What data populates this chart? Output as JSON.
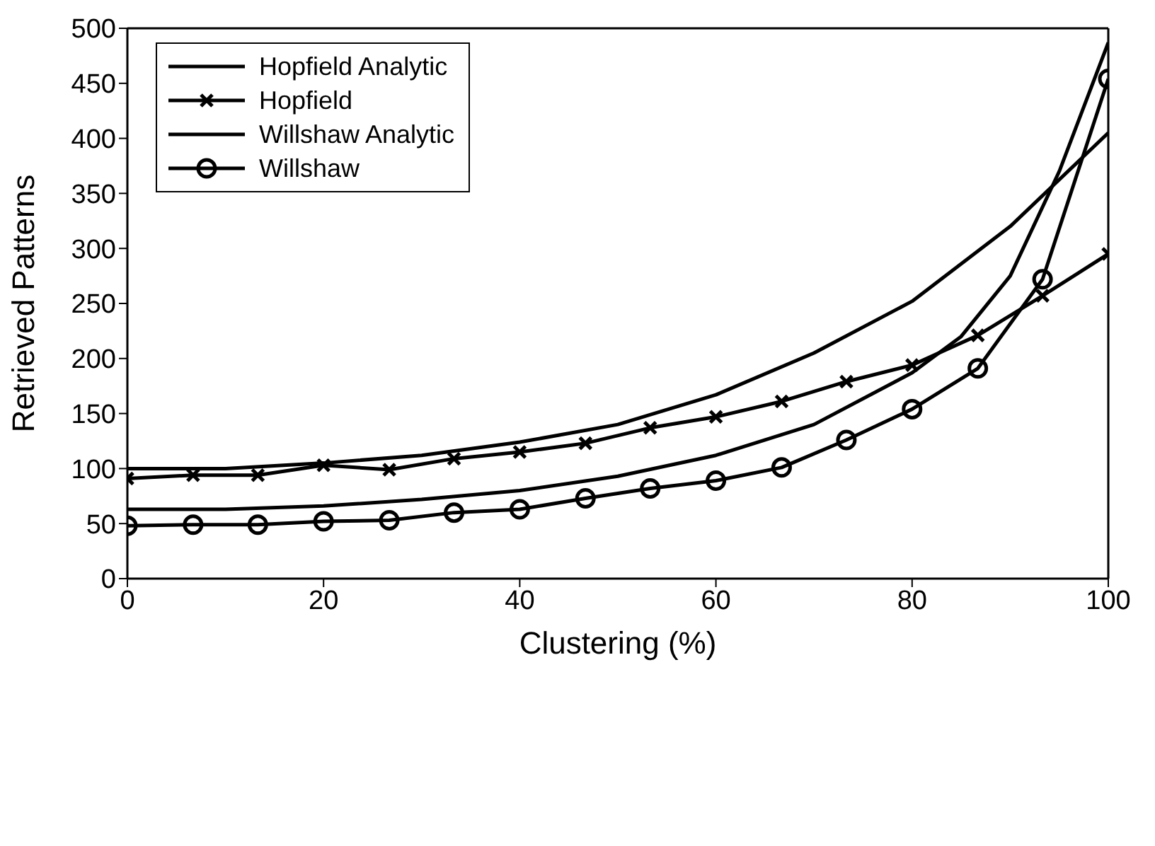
{
  "chart_data": {
    "type": "line",
    "xlabel": "Clustering (%)",
    "ylabel": "Retrieved Patterns",
    "xlim": [
      0,
      100
    ],
    "xticks": [
      0,
      20,
      40,
      60,
      80,
      100
    ],
    "ylim": [
      0,
      500
    ],
    "yticks": [
      0,
      50,
      100,
      150,
      200,
      250,
      300,
      350,
      400,
      450,
      500
    ],
    "grid": false,
    "legend": "top left",
    "line_style": "solid",
    "series": [
      {
        "name": "Hopfield Analytic",
        "color": "#000000",
        "marker": "none",
        "x": [
          0,
          10,
          20,
          30,
          40,
          50,
          60,
          70,
          80,
          90,
          100
        ],
        "values": [
          100,
          100,
          105,
          112,
          124,
          140,
          167,
          205,
          252,
          320,
          405
        ]
      },
      {
        "name": "Hopfield",
        "color": "#000000",
        "marker": "cross",
        "x": [
          0,
          6.7,
          13.3,
          20,
          26.7,
          33.3,
          40,
          46.7,
          53.3,
          60,
          66.7,
          73.3,
          80,
          86.7,
          93.3,
          100
        ],
        "values": [
          91,
          94,
          94,
          103,
          99,
          109,
          115,
          123,
          137,
          147,
          161,
          179,
          194,
          221,
          257,
          295
        ]
      },
      {
        "name": "Willshaw Analytic",
        "color": "#000000",
        "marker": "none",
        "x": [
          0,
          10,
          20,
          30,
          40,
          50,
          60,
          70,
          80,
          85,
          90,
          95,
          100
        ],
        "values": [
          63,
          63,
          66,
          72,
          80,
          93,
          112,
          140,
          187,
          220,
          275,
          370,
          487
        ]
      },
      {
        "name": "Willshaw",
        "color": "#000000",
        "marker": "circle",
        "x": [
          0,
          6.7,
          13.3,
          20,
          26.7,
          33.3,
          40,
          46.7,
          53.3,
          60,
          66.7,
          73.3,
          80,
          86.7,
          93.3,
          100
        ],
        "values": [
          48,
          49,
          49,
          52,
          53,
          60,
          63,
          73,
          82,
          89,
          101,
          126,
          154,
          191,
          272,
          454
        ]
      }
    ]
  }
}
